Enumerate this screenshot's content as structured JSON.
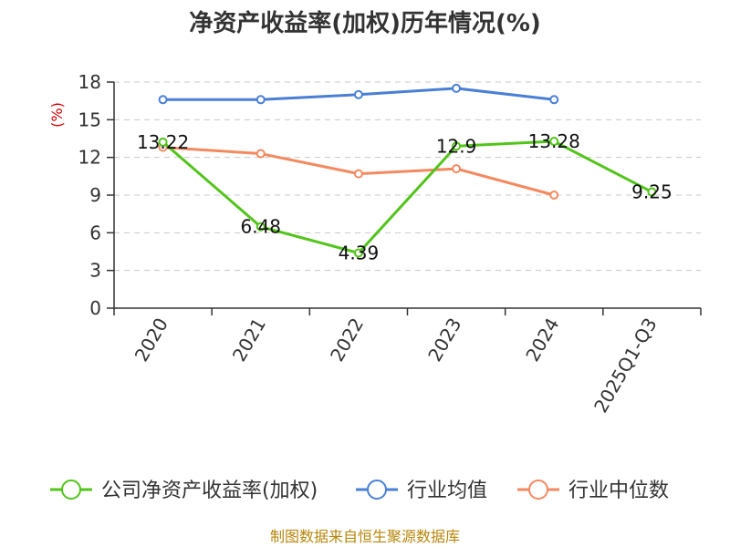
{
  "chart_data": {
    "type": "line",
    "title": "净资产收益率(加权)历年情况(%)",
    "ylabel": "(%)",
    "categories": [
      "2020",
      "2021",
      "2022",
      "2023",
      "2024",
      "2025Q1-Q3"
    ],
    "ylim": [
      0,
      18
    ],
    "yticks": [
      0,
      3,
      6,
      9,
      12,
      15,
      18
    ],
    "grid": true,
    "legend_position": "bottom",
    "series": [
      {
        "name": "公司净资产收益率(加权)",
        "color": "#52c41a",
        "values": [
          13.22,
          6.48,
          4.39,
          12.9,
          13.28,
          9.25
        ],
        "labels": [
          "13.22",
          "6.48",
          "4.39",
          "12.9",
          "13.28",
          "9.25"
        ]
      },
      {
        "name": "行业均值",
        "color": "#4a7fd6",
        "values": [
          16.6,
          16.6,
          17.0,
          17.5,
          16.6,
          null
        ]
      },
      {
        "name": "行业中位数",
        "color": "#f4895f",
        "values": [
          12.8,
          12.3,
          10.7,
          11.1,
          9.0,
          null
        ]
      }
    ],
    "source": "制图数据来自恒生聚源数据库"
  }
}
